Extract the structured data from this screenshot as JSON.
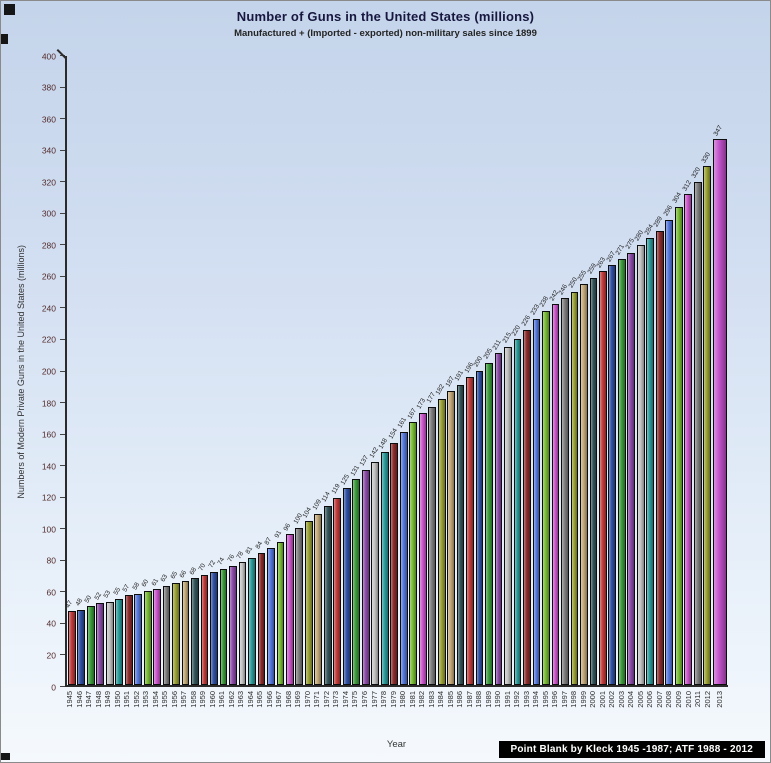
{
  "title": "Number of Guns in the United States (millions)",
  "subtitle": "Manufactured + (Imported - exported) non-military sales since 1899",
  "caption": "Point Blank by Kleck 1945 -1987; ATF 1988 - 2012",
  "chart_data": {
    "type": "bar",
    "title": "Number of Guns in the United States (millions)",
    "subtitle": "Manufactured + (Imported - exported) non-military sales since 1899",
    "xlabel": "Year",
    "ylabel": "Numbers of Modern Private Guns in the United States (millions)",
    "ylim": [
      0,
      400
    ],
    "ytick_step": 20,
    "grid": false,
    "legend": "none",
    "value_labels": "rotated above bars",
    "categories": [
      "1945",
      "1946",
      "1947",
      "1948",
      "1949",
      "1950",
      "1951",
      "1952",
      "1953",
      "1954",
      "1955",
      "1956",
      "1957",
      "1958",
      "1959",
      "1960",
      "1961",
      "1962",
      "1963",
      "1964",
      "1965",
      "1966",
      "1967",
      "1968",
      "1969",
      "1970",
      "1971",
      "1972",
      "1973",
      "1974",
      "1975",
      "1976",
      "1977",
      "1978",
      "1979",
      "1980",
      "1981",
      "1982",
      "1983",
      "1984",
      "1985",
      "1986",
      "1987",
      "1988",
      "1989",
      "1990",
      "1991",
      "1992",
      "1993",
      "1994",
      "1995",
      "1996",
      "1997",
      "1998",
      "1999",
      "2000",
      "2001",
      "2002",
      "2003",
      "2004",
      "2005",
      "2006",
      "2007",
      "2008",
      "2009",
      "2010",
      "2011",
      "2012",
      "2013"
    ],
    "values": [
      47,
      48,
      50,
      52,
      53,
      55,
      57,
      58,
      60,
      61,
      63,
      65,
      66,
      68,
      70,
      72,
      74,
      76,
      78,
      81,
      84,
      87,
      91,
      96,
      100,
      104,
      109,
      114,
      119,
      125,
      131,
      137,
      142,
      148,
      154,
      161,
      167,
      173,
      177,
      182,
      187,
      191,
      196,
      200,
      205,
      211,
      215,
      220,
      226,
      233,
      238,
      242,
      246,
      250,
      255,
      259,
      263,
      267,
      271,
      275,
      280,
      284,
      289,
      296,
      304,
      312,
      320,
      330,
      347
    ],
    "palette": [
      "#c03a3a",
      "#2e4fa3",
      "#3a9a3a",
      "#8a4aa8",
      "#c2c2c2",
      "#2a9a9a",
      "#8a2a2a",
      "#5577dd",
      "#77bb33",
      "#cc55cc",
      "#7d7d7d",
      "#99a033",
      "#c2a878",
      "#33555a"
    ],
    "last_bar_color": "#c050c8",
    "tick_label_color": "#542c2c",
    "background_top": "#c4d4ea",
    "background_bottom": "#f5f9fd"
  }
}
